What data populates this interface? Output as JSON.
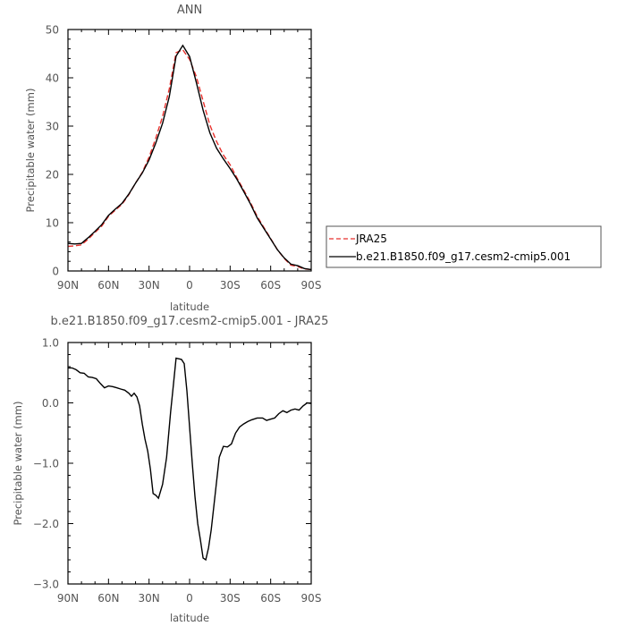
{
  "chart_data": [
    {
      "type": "line",
      "title": "ANN",
      "xlabel": "latitude",
      "ylabel": "Precipitable water  (mm)",
      "xlim": [
        90,
        -90
      ],
      "ylim": [
        0,
        50
      ],
      "xticks": [
        90,
        60,
        30,
        0,
        -30,
        -60,
        -90
      ],
      "xtick_labels": [
        "90N",
        "60N",
        "30N",
        "0",
        "30S",
        "60S",
        "90S"
      ],
      "yticks": [
        0,
        10,
        20,
        30,
        40,
        50
      ],
      "ytick_labels": [
        "0",
        "10",
        "20",
        "30",
        "40",
        "50"
      ],
      "legend_position": "right",
      "series": [
        {
          "name": "JRA25",
          "color": "#e8312d",
          "dash": "dashed",
          "x": [
            90,
            85,
            80,
            75,
            70,
            65,
            60,
            55,
            50,
            45,
            40,
            35,
            30,
            25,
            20,
            15,
            10,
            5,
            0,
            -5,
            -10,
            -15,
            -20,
            -25,
            -30,
            -35,
            -40,
            -45,
            -50,
            -55,
            -60,
            -65,
            -70,
            -75,
            -80,
            -85,
            -90
          ],
          "y": [
            5.1,
            5.2,
            5.4,
            6.6,
            8.0,
            9.3,
            11.3,
            12.6,
            13.8,
            15.8,
            18.2,
            20.4,
            23.6,
            27.5,
            32.0,
            37.7,
            45.2,
            45.8,
            43.8,
            40.2,
            35.2,
            30.2,
            26.8,
            24.0,
            22.0,
            19.3,
            16.8,
            14.2,
            11.3,
            9.0,
            6.7,
            4.4,
            2.6,
            1.2,
            0.9,
            0.4,
            0.3
          ]
        },
        {
          "name": "b.e21.B1850.f09_g17.cesm2-cmip5.001",
          "color": "#000000",
          "dash": "solid",
          "x": [
            90,
            85,
            80,
            75,
            70,
            65,
            60,
            55,
            50,
            45,
            40,
            35,
            30,
            25,
            20,
            15,
            10,
            5,
            0,
            -5,
            -10,
            -15,
            -20,
            -25,
            -30,
            -35,
            -40,
            -45,
            -50,
            -55,
            -60,
            -65,
            -70,
            -75,
            -80,
            -85,
            -90
          ],
          "y": [
            5.7,
            5.6,
            5.7,
            6.9,
            8.2,
            9.6,
            11.5,
            12.8,
            14.0,
            15.9,
            18.2,
            20.3,
            23.0,
            26.5,
            30.6,
            36.1,
            44.5,
            46.7,
            44.4,
            39.0,
            33.3,
            28.6,
            25.4,
            23.2,
            21.2,
            19.0,
            16.5,
            13.9,
            11.0,
            8.8,
            6.6,
            4.4,
            2.7,
            1.4,
            1.1,
            0.5,
            0.3
          ]
        }
      ]
    },
    {
      "type": "line",
      "title": "b.e21.B1850.f09_g17.cesm2-cmip5.001 - JRA25",
      "xlabel": "latitude",
      "ylabel": "Precipitable water  (mm)",
      "xlim": [
        90,
        -90
      ],
      "ylim": [
        -3.0,
        1.0
      ],
      "xticks": [
        90,
        60,
        30,
        0,
        -30,
        -60,
        -90
      ],
      "xtick_labels": [
        "90N",
        "60N",
        "30N",
        "0",
        "30S",
        "60S",
        "90S"
      ],
      "yticks": [
        1.0,
        0.0,
        -1.0,
        -2.0,
        -3.0
      ],
      "ytick_labels": [
        "1.0",
        "0.0",
        "−1.0",
        "−2.0",
        "−3.0"
      ],
      "series": [
        {
          "color": "#000000",
          "dash": "solid",
          "x": [
            90,
            87,
            84,
            81,
            78,
            75,
            72,
            69,
            66,
            63,
            60,
            57,
            54,
            51,
            48,
            45,
            43,
            41,
            39,
            37,
            35,
            33,
            31,
            29,
            27,
            25,
            23,
            20,
            17,
            14,
            12,
            10,
            8,
            6,
            4,
            2,
            0,
            -2,
            -4,
            -6,
            -8,
            -10,
            -12,
            -14,
            -16,
            -18,
            -20,
            -22,
            -25,
            -28,
            -31,
            -34,
            -37,
            -40,
            -43,
            -46,
            -50,
            -54,
            -57,
            -60,
            -63,
            -66,
            -69,
            -72,
            -75,
            -78,
            -81,
            -84,
            -87,
            -90
          ],
          "y": [
            0.58,
            0.58,
            0.55,
            0.5,
            0.49,
            0.43,
            0.42,
            0.4,
            0.32,
            0.25,
            0.28,
            0.27,
            0.25,
            0.23,
            0.21,
            0.16,
            0.11,
            0.16,
            0.1,
            -0.05,
            -0.35,
            -0.6,
            -0.8,
            -1.1,
            -1.5,
            -1.53,
            -1.58,
            -1.35,
            -0.9,
            -0.15,
            0.3,
            0.74,
            0.73,
            0.72,
            0.65,
            0.2,
            -0.4,
            -1.0,
            -1.55,
            -2.0,
            -2.27,
            -2.57,
            -2.6,
            -2.4,
            -2.1,
            -1.7,
            -1.3,
            -0.9,
            -0.72,
            -0.73,
            -0.68,
            -0.5,
            -0.4,
            -0.35,
            -0.31,
            -0.28,
            -0.25,
            -0.25,
            -0.29,
            -0.27,
            -0.25,
            -0.18,
            -0.13,
            -0.16,
            -0.12,
            -0.1,
            -0.12,
            -0.05,
            0.0,
            -0.01
          ]
        }
      ]
    }
  ]
}
